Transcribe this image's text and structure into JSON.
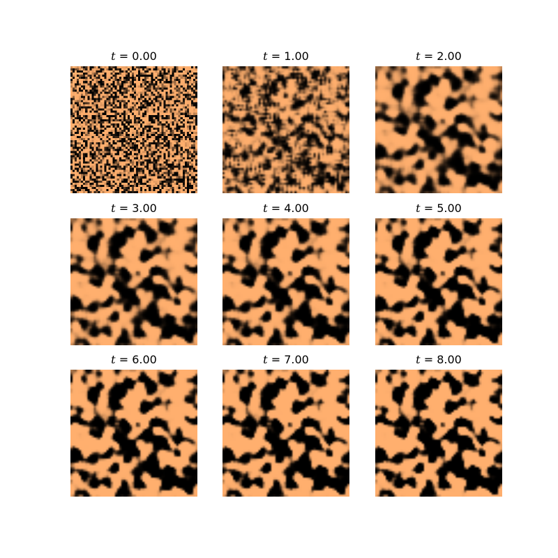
{
  "colormap": {
    "dark": "#000000",
    "light": "#ffaf6e"
  },
  "variable": "t",
  "panels": [
    {
      "time_label": "0.00",
      "time": 0
    },
    {
      "time_label": "1.00",
      "time": 1
    },
    {
      "time_label": "2.00",
      "time": 2
    },
    {
      "time_label": "3.00",
      "time": 3
    },
    {
      "time_label": "4.00",
      "time": 4
    },
    {
      "time_label": "5.00",
      "time": 5
    },
    {
      "time_label": "6.00",
      "time": 6
    },
    {
      "time_label": "7.00",
      "time": 7
    },
    {
      "time_label": "8.00",
      "time": 8
    }
  ]
}
